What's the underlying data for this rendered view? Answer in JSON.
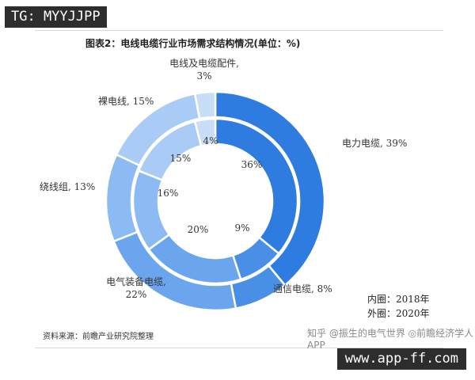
{
  "overlay": {
    "top_left_tag": "TG: MYYJJPP",
    "bottom_right_tag": "www.app-ff.com"
  },
  "footer": {
    "source": "资料来源：前瞻产业研究院整理",
    "watermark": "知乎 @振生的电气世界 ◎前瞻经济学人APP"
  },
  "legend_note": {
    "inner": "内圈：2018年",
    "outer": "外圈：2020年"
  },
  "colors": {
    "line": "#ffffff",
    "ring_colors": [
      "#2f7ce0",
      "#4a8fe6",
      "#6aa5ee",
      "#8cbaf2",
      "#a9cbf5",
      "#c7ddf8"
    ]
  },
  "chart_data": {
    "type": "pie",
    "title": "图表2：电线电缆行业市场需求结构情况(单位：%)",
    "categories": [
      "电力电缆",
      "通信电缆",
      "电气装备电缆",
      "绕线组",
      "裸电线",
      "电线及电缆配件"
    ],
    "series": [
      {
        "name": "内圈：2018年",
        "values": [
          36,
          9,
          20,
          16,
          15,
          4
        ]
      },
      {
        "name": "外圈：2020年",
        "values": [
          39,
          8,
          22,
          13,
          15,
          3
        ]
      }
    ],
    "outer_labels": [
      "电力电缆, 39%",
      "通信电缆, 8%",
      "电气装备电缆,\n22%",
      "绕线组, 13%",
      "裸电线, 15%",
      "电线及电缆配件,\n3%"
    ],
    "inner_labels": [
      "36%",
      "9%",
      "20%",
      "16%",
      "15%",
      "4%"
    ]
  }
}
